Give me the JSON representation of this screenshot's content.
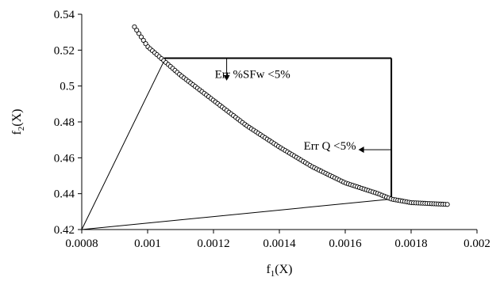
{
  "chart_data": {
    "type": "scatter",
    "xlim": [
      0.0008,
      0.002
    ],
    "ylim": [
      0.42,
      0.54
    ],
    "x_ticks": [
      "0.0008",
      "0.001",
      "0.0012",
      "0.0014",
      "0.0016",
      "0.0018",
      "0.002"
    ],
    "y_ticks": [
      "0.42",
      "0.44",
      "0.46",
      "0.48",
      "0.5",
      "0.52",
      "0.54"
    ],
    "xlabel": {
      "main": "f",
      "sub": "1",
      "tail": "(X)"
    },
    "ylabel": {
      "main": "f",
      "sub": "2",
      "tail": "(X)"
    },
    "grid": false,
    "front_points": {
      "x_start": 0.00096,
      "x_end": 0.00191,
      "count": 140,
      "curve_anchor_points": [
        [
          0.00096,
          0.533
        ],
        [
          0.001,
          0.522
        ],
        [
          0.00105,
          0.514
        ],
        [
          0.0011,
          0.506
        ],
        [
          0.0012,
          0.492
        ],
        [
          0.0013,
          0.478
        ],
        [
          0.0014,
          0.466
        ],
        [
          0.0015,
          0.455
        ],
        [
          0.0016,
          0.446
        ],
        [
          0.0017,
          0.44
        ],
        [
          0.00174,
          0.437
        ],
        [
          0.0018,
          0.435
        ],
        [
          0.00191,
          0.434
        ]
      ]
    },
    "reference_point": [
      0.0008,
      0.42
    ],
    "constraint_box": {
      "x_left": 0.00105,
      "x_right": 0.00174,
      "y_top": 0.5155,
      "y_bottom": 0.4365
    },
    "annotations": [
      {
        "text": "Err %SFw <5%",
        "x": 0.00124,
        "y": 0.5045
      },
      {
        "text": "Err Q <5%",
        "x": 0.00151,
        "y": 0.4645
      }
    ],
    "arrows": [
      {
        "direction": "down",
        "x": 0.00124,
        "y_from": 0.5155,
        "y_to": 0.503
      },
      {
        "direction": "left",
        "y": 0.4645,
        "x_from": 0.00174,
        "x_to": 0.00164
      }
    ]
  }
}
